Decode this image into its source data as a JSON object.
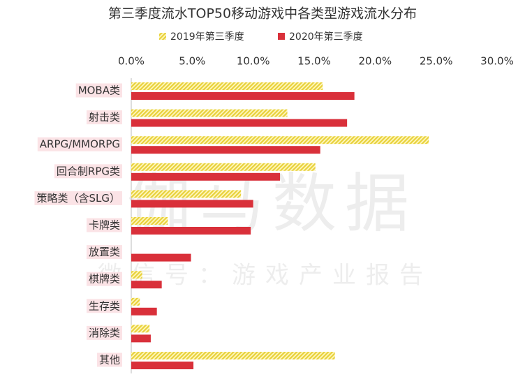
{
  "chart_data": {
    "type": "bar",
    "orientation": "horizontal",
    "title": "第三季度流水TOP50移动游戏中各类型游戏流水分布",
    "categories": [
      "MOBA类",
      "射击类",
      "ARPG/MMORPG",
      "回合制RPG类",
      "策略类（含SLG）",
      "卡牌类",
      "放置类",
      "棋牌类",
      "生存类",
      "消除类",
      "其他"
    ],
    "series": [
      {
        "name": "2019年第三季度",
        "color": "#e8d13a",
        "pattern": "hatch",
        "values": [
          15.7,
          12.8,
          24.4,
          15.1,
          9.0,
          3.0,
          0,
          0.9,
          0.7,
          1.5,
          16.7
        ]
      },
      {
        "name": "2020年第三季度",
        "color": "#d9303a",
        "pattern": "solid",
        "values": [
          18.3,
          17.7,
          15.5,
          12.2,
          10.0,
          9.8,
          4.9,
          2.5,
          2.1,
          1.6,
          5.1
        ]
      }
    ],
    "xlim": [
      0,
      30
    ],
    "xticks": [
      {
        "value": 0,
        "label": "0.0%"
      },
      {
        "value": 5,
        "label": "5.0%"
      },
      {
        "value": 10,
        "label": "10.0%"
      },
      {
        "value": 15,
        "label": "15.0%"
      },
      {
        "value": 20,
        "label": "20.0%"
      },
      {
        "value": 25,
        "label": "25.0%"
      },
      {
        "value": 30,
        "label": "30.0%"
      }
    ],
    "xaxis_position": "top",
    "legend": "top",
    "grid": false,
    "watermark": [
      "伽马数据",
      "微信号：游戏产业报告"
    ]
  }
}
